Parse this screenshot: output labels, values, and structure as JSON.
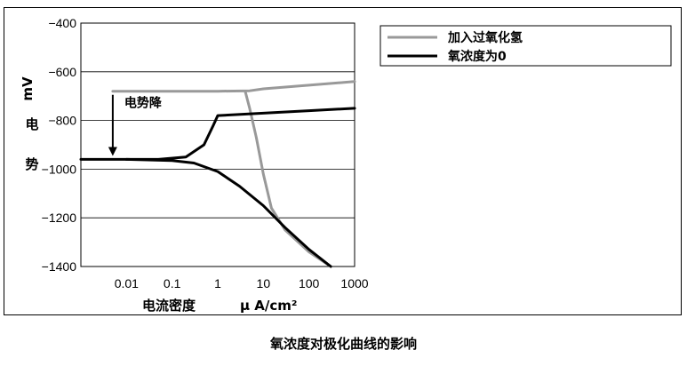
{
  "caption": "氧浓度对极化曲线的影响",
  "chart_data": {
    "type": "line",
    "title": "",
    "x_scale": "log",
    "xlabel_left": "电流密度",
    "xlabel_unit": "μ A/cm²",
    "ylabel_unit": "mV",
    "ylabel_chars": [
      "电",
      "势"
    ],
    "xlim": [
      0.001,
      1000
    ],
    "ylim": [
      -1400,
      -400
    ],
    "x_ticks": [
      0.01,
      0.1,
      1,
      10,
      100,
      1000
    ],
    "x_tick_labels": [
      "0.01",
      "0.1",
      "1",
      "10",
      "100",
      "1000"
    ],
    "y_ticks": [
      -400,
      -600,
      -800,
      -1000,
      -1200,
      -1400
    ],
    "y_tick_labels": [
      "−400",
      "−600",
      "−800",
      "−1000",
      "−1200",
      "−1400"
    ],
    "grid": "horizontal",
    "legend_position": "right",
    "annotation": {
      "text": "电势降",
      "arrow_from": [
        0.005,
        -680
      ],
      "arrow_to": [
        0.005,
        -960
      ]
    },
    "series": [
      {
        "name": "加入过氧化氢",
        "color": "#999999",
        "branches": [
          {
            "x": [
              0.005,
              0.1,
              1,
              5,
              10,
              100,
              1000
            ],
            "y": [
              -680,
              -680,
              -680,
              -678,
              -670,
              -655,
              -640
            ]
          },
          {
            "x": [
              4,
              5,
              7,
              10,
              15,
              30,
              100,
              300
            ],
            "y": [
              -680,
              -750,
              -870,
              -1020,
              -1160,
              -1250,
              -1340,
              -1400
            ]
          }
        ]
      },
      {
        "name": "氧浓度为0",
        "color": "#000000",
        "branches": [
          {
            "x": [
              0.001,
              0.05,
              0.2,
              0.5,
              0.8,
              1,
              10,
              100,
              1000
            ],
            "y": [
              -960,
              -960,
              -950,
              -900,
              -820,
              -780,
              -770,
              -760,
              -750
            ]
          },
          {
            "x": [
              0.01,
              0.1,
              0.3,
              1,
              3,
              10,
              30,
              100,
              300
            ],
            "y": [
              -960,
              -965,
              -975,
              -1010,
              -1070,
              -1150,
              -1240,
              -1330,
              -1400
            ]
          }
        ]
      }
    ]
  }
}
